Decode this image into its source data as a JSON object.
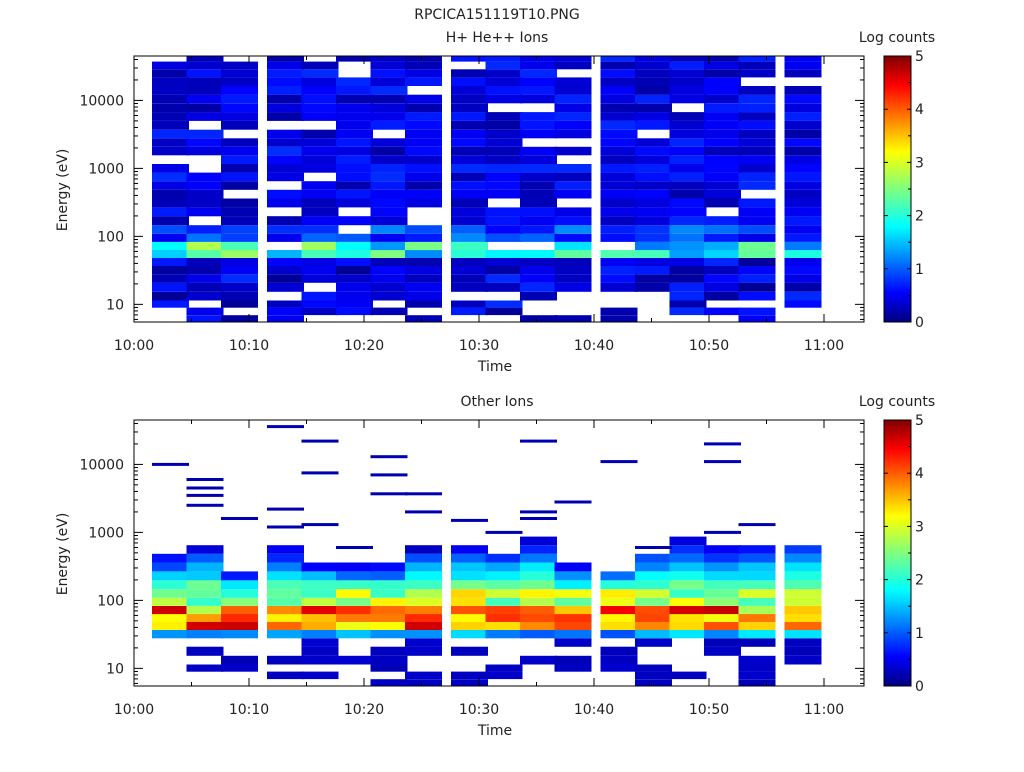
{
  "page": {
    "title": "RPCICA151119T10.PNG"
  },
  "chart_data": [
    {
      "type": "heatmap",
      "title": "H+ He++ Ions",
      "xlabel": "Time",
      "ylabel": "Energy (eV)",
      "yscale": "log",
      "x_ticks": [
        "10:00",
        "10:10",
        "10:20",
        "10:30",
        "10:40",
        "10:50",
        "11:00"
      ],
      "y_ticks": [
        "10",
        "100",
        "1000",
        "10000"
      ],
      "colorbar": {
        "label": "Log counts",
        "range": [
          0,
          5
        ],
        "ticks": [
          "0",
          "1",
          "2",
          "3",
          "4",
          "5"
        ]
      },
      "x_range": [
        "10:00",
        "11:00"
      ],
      "y_range": [
        5.5,
        45000
      ],
      "columns": [
        "10:03",
        "10:06",
        "10:09",
        "10:13",
        "10:16",
        "10:19",
        "10:22",
        "10:25",
        "10:29",
        "10:32",
        "10:35",
        "10:38",
        "10:42",
        "10:45",
        "10:48",
        "10:51",
        "10:54",
        "10:58"
      ],
      "energy_bins_eV": [
        6,
        8,
        10,
        13,
        18,
        24,
        32,
        42,
        55,
        72,
        95,
        125,
        170,
        230,
        310,
        420,
        560,
        750,
        1000,
        1350,
        1800,
        2400,
        3200,
        4300,
        5800,
        7800,
        10500,
        14000,
        19000,
        25000,
        33000,
        42000
      ],
      "profile": "h_he",
      "low_energy_gaps": [
        [
          0,
          1
        ],
        [
          1,
          2
        ],
        [
          2,
          1
        ],
        [
          3,
          3
        ],
        [
          4,
          4
        ],
        [
          5,
          0
        ],
        [
          6,
          2
        ],
        [
          7,
          1
        ],
        [
          8,
          3
        ],
        [
          9,
          3
        ],
        [
          10,
          1
        ],
        [
          10,
          2
        ],
        [
          11,
          1
        ],
        [
          11,
          2
        ],
        [
          11,
          3
        ],
        [
          12,
          3
        ],
        [
          13,
          0
        ],
        [
          13,
          1
        ],
        [
          13,
          2
        ],
        [
          13,
          3
        ],
        [
          14,
          0
        ],
        [
          15,
          0
        ],
        [
          15,
          2
        ],
        [
          16,
          2
        ],
        [
          17,
          0
        ],
        [
          17,
          1
        ],
        [
          0,
          0
        ],
        [
          4,
          0
        ],
        [
          6,
          0
        ],
        [
          8,
          0
        ],
        [
          9,
          0
        ],
        [
          12,
          2
        ]
      ],
      "peak_log_counts": 2.8,
      "grid": false
    },
    {
      "type": "heatmap",
      "title": "Other Ions",
      "xlabel": "Time",
      "ylabel": "Energy (eV)",
      "yscale": "log",
      "x_ticks": [
        "10:00",
        "10:10",
        "10:20",
        "10:30",
        "10:40",
        "10:50",
        "11:00"
      ],
      "y_ticks": [
        "10",
        "100",
        "1000",
        "10000"
      ],
      "colorbar": {
        "label": "Log counts",
        "range": [
          0,
          5
        ],
        "ticks": [
          "0",
          "1",
          "2",
          "3",
          "4",
          "5"
        ]
      },
      "x_range": [
        "10:00",
        "11:00"
      ],
      "y_range": [
        5.5,
        45000
      ],
      "columns": [
        "10:03",
        "10:06",
        "10:09",
        "10:13",
        "10:16",
        "10:19",
        "10:22",
        "10:25",
        "10:29",
        "10:32",
        "10:35",
        "10:38",
        "10:42",
        "10:45",
        "10:48",
        "10:51",
        "10:54",
        "10:58"
      ],
      "energy_bins_eV": [
        6,
        8,
        10,
        13,
        18,
        24,
        32,
        42,
        55,
        72,
        95,
        125,
        170,
        230,
        310,
        420,
        560,
        750,
        1000,
        1350,
        1800,
        2400,
        3200,
        4300,
        5800,
        7800,
        10500,
        14000,
        19000,
        25000,
        33000,
        42000
      ],
      "profile": "other",
      "upper_extent_eV": [
        420,
        560,
        240,
        560,
        360,
        320,
        320,
        560,
        640,
        500,
        800,
        320,
        300,
        540,
        800,
        600,
        620,
        700
      ],
      "sparse_high_lines": [
        [
          0,
          10000
        ],
        [
          1,
          6000
        ],
        [
          1,
          4500
        ],
        [
          1,
          3500
        ],
        [
          1,
          2500
        ],
        [
          2,
          1600
        ],
        [
          3,
          36000
        ],
        [
          3,
          2200
        ],
        [
          3,
          1200
        ],
        [
          4,
          22000
        ],
        [
          4,
          7500
        ],
        [
          4,
          1300
        ],
        [
          5,
          600
        ],
        [
          6,
          13000
        ],
        [
          6,
          7000
        ],
        [
          6,
          3700
        ],
        [
          7,
          3700
        ],
        [
          7,
          2000
        ],
        [
          8,
          1500
        ],
        [
          9,
          1000
        ],
        [
          10,
          22000
        ],
        [
          10,
          2000
        ],
        [
          10,
          1600
        ],
        [
          11,
          2800
        ],
        [
          12,
          11000
        ],
        [
          13,
          600
        ],
        [
          15,
          20000
        ],
        [
          15,
          11000
        ],
        [
          15,
          1000
        ],
        [
          16,
          1300
        ]
      ],
      "peak_log_counts": 4.7,
      "grid": false
    }
  ]
}
